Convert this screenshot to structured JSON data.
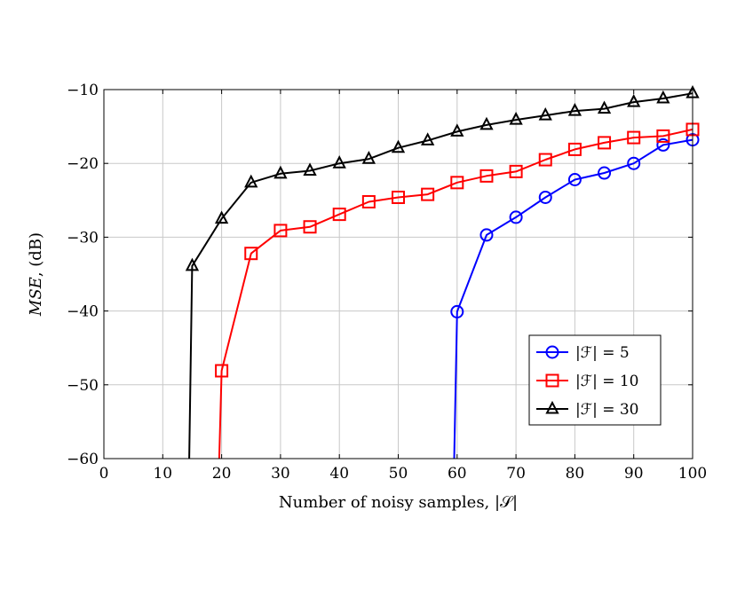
{
  "chart_data": {
    "type": "line",
    "xlabel": "Number of noisy samples, |𝒮|",
    "ylabel_parts": {
      "italic": "MSE",
      "rest": ", (dB)"
    },
    "xlim": [
      0,
      100
    ],
    "ylim": [
      -60,
      -10
    ],
    "xticks": [
      0,
      10,
      20,
      30,
      40,
      50,
      60,
      70,
      80,
      90,
      100
    ],
    "yticks": [
      -60,
      -50,
      -40,
      -30,
      -20,
      -10
    ],
    "ytick_labels": [
      "−60",
      "−50",
      "−40",
      "−30",
      "−20",
      "−10"
    ],
    "grid": true,
    "legend_position": "bottom-right",
    "series": [
      {
        "name": "|ℱ| = 5",
        "color": "#0000ff",
        "marker": "circle",
        "x": [
          59.5,
          60,
          65,
          70,
          75,
          80,
          85,
          90,
          95,
          100
        ],
        "y": [
          -60,
          -40.1,
          -29.7,
          -27.3,
          -24.6,
          -22.2,
          -21.3,
          -20.0,
          -17.5,
          -16.8
        ],
        "marker_from": 1
      },
      {
        "name": "|ℱ| = 10",
        "color": "#ff0000",
        "marker": "square",
        "x": [
          19.6,
          20,
          25,
          30,
          35,
          40,
          45,
          50,
          55,
          60,
          65,
          70,
          75,
          80,
          85,
          90,
          95,
          100
        ],
        "y": [
          -60,
          -48.1,
          -32.2,
          -29.1,
          -28.6,
          -26.9,
          -25.2,
          -24.6,
          -24.2,
          -22.6,
          -21.7,
          -21.1,
          -19.5,
          -18.1,
          -17.2,
          -16.5,
          -16.3,
          -15.4
        ],
        "marker_from": 1
      },
      {
        "name": "|ℱ| = 30",
        "color": "#000000",
        "marker": "triangle",
        "x": [
          14.5,
          15,
          20,
          25,
          30,
          35,
          40,
          45,
          50,
          55,
          60,
          65,
          70,
          75,
          80,
          85,
          90,
          95,
          100
        ],
        "y": [
          -60,
          -33.9,
          -27.5,
          -22.6,
          -21.4,
          -21.0,
          -20.0,
          -19.4,
          -17.9,
          -16.9,
          -15.7,
          -14.8,
          -14.1,
          -13.5,
          -12.9,
          -12.6,
          -11.7,
          -11.2,
          -10.5
        ],
        "marker_from": 1
      }
    ]
  }
}
